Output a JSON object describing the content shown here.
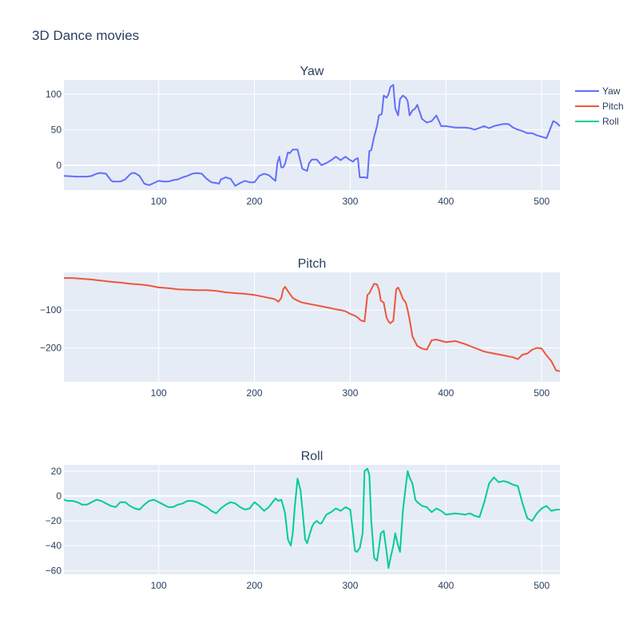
{
  "title": "3D Dance movies",
  "colors": {
    "plot_bg": "#e5ecf6",
    "grid": "#ffffff",
    "yaw": "#636efa",
    "pitch": "#ef553b",
    "roll": "#00cc96"
  },
  "legend": [
    {
      "name": "Yaw",
      "color": "#636efa"
    },
    {
      "name": "Pitch",
      "color": "#ef553b"
    },
    {
      "name": "Roll",
      "color": "#00cc96"
    }
  ],
  "chart_data": [
    {
      "type": "line",
      "title": "Yaw",
      "xlim": [
        1,
        519
      ],
      "ylim": [
        -35,
        120
      ],
      "xticks": [
        100,
        200,
        300,
        400,
        500
      ],
      "yticks": [
        0,
        50,
        100
      ],
      "series": [
        {
          "name": "Yaw",
          "color": "#636efa",
          "x": [
            1,
            15,
            25,
            30,
            35,
            38,
            40,
            45,
            50,
            52,
            55,
            60,
            65,
            70,
            72,
            75,
            80,
            85,
            90,
            95,
            100,
            105,
            110,
            115,
            120,
            125,
            130,
            135,
            140,
            145,
            150,
            155,
            160,
            163,
            165,
            170,
            175,
            180,
            185,
            190,
            195,
            200,
            205,
            210,
            215,
            220,
            222,
            224,
            226,
            228,
            230,
            232,
            235,
            237,
            240,
            242,
            245,
            250,
            255,
            257,
            260,
            265,
            270,
            275,
            280,
            285,
            290,
            295,
            300,
            303,
            305,
            308,
            310,
            312,
            315,
            318,
            320,
            322,
            325,
            328,
            330,
            333,
            335,
            338,
            340,
            342,
            345,
            347,
            350,
            352,
            355,
            358,
            360,
            362,
            365,
            368,
            370,
            375,
            380,
            385,
            390,
            395,
            400,
            410,
            420,
            425,
            430,
            440,
            445,
            450,
            460,
            465,
            470,
            475,
            480,
            485,
            490,
            495,
            500,
            505,
            510,
            512,
            515,
            519
          ],
          "values": [
            -15,
            -16,
            -16,
            -15,
            -12,
            -11,
            -11,
            -12,
            -21,
            -23,
            -23,
            -23,
            -20,
            -13,
            -11,
            -11,
            -15,
            -26,
            -28,
            -25,
            -22,
            -23,
            -23,
            -21,
            -20,
            -17,
            -15,
            -12,
            -11,
            -12,
            -19,
            -24,
            -25,
            -26,
            -20,
            -17,
            -19,
            -29,
            -25,
            -22,
            -24,
            -24,
            -15,
            -12,
            -14,
            -20,
            -22,
            3,
            12,
            -3,
            -3,
            2,
            18,
            17,
            22,
            22,
            22,
            -5,
            -8,
            3,
            8,
            8,
            0,
            3,
            7,
            12,
            7,
            12,
            7,
            5,
            8,
            10,
            -17,
            -17,
            -17,
            -18,
            20,
            21,
            40,
            55,
            70,
            72,
            98,
            95,
            100,
            110,
            113,
            80,
            70,
            93,
            98,
            95,
            90,
            70,
            77,
            80,
            85,
            65,
            60,
            62,
            70,
            55,
            55,
            53,
            53,
            52,
            50,
            55,
            52,
            55,
            58,
            58,
            53,
            50,
            48,
            45,
            45,
            42,
            40,
            38,
            55,
            62,
            60,
            55
          ]
        }
      ]
    },
    {
      "type": "line",
      "title": "Pitch",
      "xlim": [
        1,
        519
      ],
      "ylim": [
        -290,
        0
      ],
      "xticks": [
        100,
        200,
        300,
        400,
        500
      ],
      "yticks": [
        -100,
        -200
      ],
      "yticklabels": [
        "−100",
        "−200"
      ],
      "series": [
        {
          "name": "Pitch",
          "color": "#ef553b",
          "x": [
            1,
            10,
            20,
            30,
            40,
            50,
            60,
            70,
            80,
            90,
            100,
            110,
            120,
            130,
            140,
            150,
            160,
            170,
            180,
            190,
            200,
            210,
            220,
            222,
            225,
            228,
            230,
            232,
            235,
            240,
            245,
            250,
            260,
            270,
            280,
            285,
            290,
            295,
            300,
            305,
            308,
            310,
            312,
            315,
            318,
            320,
            322,
            325,
            328,
            330,
            332,
            335,
            338,
            340,
            342,
            345,
            348,
            350,
            352,
            355,
            358,
            360,
            362,
            365,
            368,
            370,
            375,
            380,
            385,
            390,
            400,
            410,
            420,
            430,
            440,
            450,
            460,
            470,
            475,
            480,
            485,
            490,
            495,
            500,
            505,
            510,
            515,
            519
          ],
          "values": [
            -15,
            -15,
            -17,
            -19,
            -22,
            -25,
            -27,
            -30,
            -32,
            -35,
            -40,
            -42,
            -45,
            -46,
            -47,
            -47,
            -49,
            -53,
            -55,
            -57,
            -60,
            -65,
            -70,
            -72,
            -78,
            -68,
            -45,
            -38,
            -50,
            -68,
            -75,
            -80,
            -85,
            -90,
            -95,
            -98,
            -100,
            -103,
            -110,
            -115,
            -120,
            -125,
            -128,
            -130,
            -60,
            -55,
            -45,
            -30,
            -32,
            -45,
            -75,
            -80,
            -120,
            -130,
            -135,
            -128,
            -45,
            -40,
            -50,
            -70,
            -80,
            -100,
            -125,
            -170,
            -185,
            -195,
            -202,
            -205,
            -180,
            -178,
            -185,
            -182,
            -190,
            -200,
            -210,
            -215,
            -220,
            -225,
            -230,
            -218,
            -215,
            -205,
            -200,
            -202,
            -220,
            -235,
            -260,
            -262
          ]
        }
      ]
    },
    {
      "type": "line",
      "title": "Roll",
      "xlim": [
        1,
        519
      ],
      "ylim": [
        -63,
        25
      ],
      "xticks": [
        100,
        200,
        300,
        400,
        500
      ],
      "yticks": [
        20,
        0,
        -20,
        -40,
        -60
      ],
      "yticklabels": [
        "20",
        "0",
        "−20",
        "−40",
        "−60"
      ],
      "series": [
        {
          "name": "Roll",
          "color": "#00cc96",
          "x": [
            1,
            5,
            10,
            15,
            20,
            25,
            30,
            35,
            40,
            45,
            50,
            55,
            60,
            65,
            70,
            75,
            80,
            85,
            90,
            95,
            100,
            105,
            110,
            115,
            120,
            125,
            130,
            135,
            140,
            145,
            150,
            155,
            160,
            165,
            170,
            175,
            180,
            185,
            190,
            195,
            200,
            205,
            210,
            215,
            220,
            222,
            225,
            228,
            230,
            232,
            235,
            238,
            240,
            242,
            245,
            248,
            250,
            253,
            255,
            258,
            260,
            262,
            265,
            268,
            270,
            275,
            280,
            285,
            290,
            295,
            300,
            303,
            305,
            307,
            310,
            313,
            315,
            318,
            320,
            322,
            325,
            328,
            330,
            332,
            335,
            338,
            340,
            342,
            345,
            347,
            350,
            352,
            355,
            358,
            360,
            362,
            365,
            368,
            370,
            375,
            380,
            385,
            390,
            395,
            400,
            410,
            420,
            425,
            430,
            435,
            440,
            445,
            450,
            455,
            460,
            465,
            470,
            475,
            480,
            485,
            490,
            495,
            500,
            505,
            510,
            515,
            519
          ],
          "values": [
            -3,
            -4,
            -4,
            -5,
            -7,
            -7,
            -5,
            -3,
            -4,
            -6,
            -8,
            -9,
            -5,
            -5,
            -8,
            -10,
            -11,
            -7,
            -4,
            -3,
            -5,
            -7,
            -9,
            -9,
            -7,
            -6,
            -4,
            -4,
            -5,
            -7,
            -9,
            -12,
            -14,
            -10,
            -7,
            -5,
            -6,
            -9,
            -11,
            -10,
            -5,
            -8,
            -12,
            -9,
            -4,
            -2,
            -4,
            -3,
            -8,
            -14,
            -35,
            -40,
            -30,
            -10,
            14,
            5,
            -10,
            -35,
            -38,
            -30,
            -25,
            -22,
            -20,
            -22,
            -22,
            -15,
            -13,
            -10,
            -12,
            -9,
            -11,
            -30,
            -44,
            -45,
            -42,
            -30,
            20,
            22,
            17,
            -20,
            -50,
            -52,
            -42,
            -30,
            -28,
            -45,
            -58,
            -50,
            -40,
            -30,
            -40,
            -45,
            -12,
            8,
            20,
            15,
            10,
            -3,
            -5,
            -8,
            -9,
            -13,
            -10,
            -12,
            -15,
            -14,
            -15,
            -14,
            -16,
            -17,
            -5,
            10,
            15,
            11,
            12,
            11,
            9,
            8,
            -6,
            -18,
            -20,
            -14,
            -10,
            -8,
            -12,
            -11,
            -11
          ]
        }
      ]
    }
  ]
}
